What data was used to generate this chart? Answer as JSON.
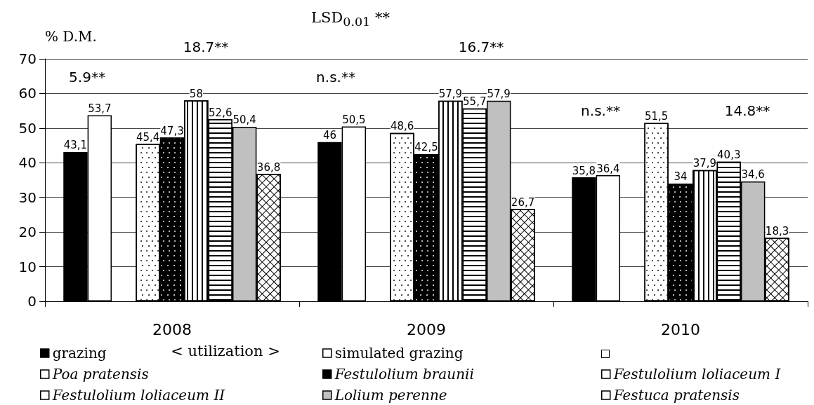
{
  "chart_data": {
    "type": "bar",
    "ylabel": "% D.M.",
    "annotations": [
      "LSD$_{0.01}$ **",
      "5.9**",
      "18.7**",
      "n.s.**",
      "16.7**",
      "n.s.**",
      "14.8**",
      "< utilization >"
    ],
    "categories": [
      "2008",
      "2009",
      "2010"
    ],
    "series": [
      {
        "name": "grazing",
        "color": "#000000",
        "values": [
          43.1,
          46,
          35.8
        ],
        "value_labels": [
          "43,1",
          "46",
          "35,8"
        ]
      },
      {
        "name": "simulated grazing",
        "color": "#ffffff",
        "values": [
          53.7,
          50.5,
          36.4
        ],
        "value_labels": [
          "53,7",
          "50,5",
          "36,4"
        ]
      },
      {
        "color": "#ffffff",
        "values": [
          null,
          null,
          null
        ]
      },
      {
        "name": "Poa pratensis",
        "color": "#ffffff",
        "values": [
          45.4,
          48.6,
          51.5
        ],
        "value_labels": [
          "45,4",
          "48,6",
          "51,5"
        ]
      },
      {
        "name": "Festulolium braunii",
        "color": "#000000",
        "values": [
          47.3,
          42.5,
          34
        ],
        "value_labels": [
          "47,3",
          "42,5",
          "34"
        ]
      },
      {
        "name": "Festulolium loliaceum I",
        "color": "#ffffff",
        "values": [
          58,
          57.9,
          37.9
        ],
        "value_labels": [
          "58",
          "57,9",
          "37,9"
        ]
      },
      {
        "name": "Festulolium loliaceum II",
        "color": "#ffffff",
        "values": [
          52.6,
          55.7,
          40.3
        ],
        "value_labels": [
          "52,6",
          "55,7",
          "40,3"
        ]
      },
      {
        "name": "Lolium perenne",
        "color": "#c0c0c0",
        "values": [
          50.4,
          57.9,
          34.6
        ],
        "value_labels": [
          "50,4",
          "57,9",
          "34,6"
        ]
      },
      {
        "name": "Festuca pratensis",
        "color": "#ffffff",
        "values": [
          36.8,
          26.7,
          18.3
        ],
        "value_labels": [
          "36,8",
          "26,7",
          "18,3"
        ]
      }
    ],
    "ylim": [
      0,
      70
    ],
    "yticks": [
      0,
      10,
      20,
      30,
      40,
      50,
      60,
      70
    ],
    "grid": "y",
    "legend": "bottom"
  }
}
